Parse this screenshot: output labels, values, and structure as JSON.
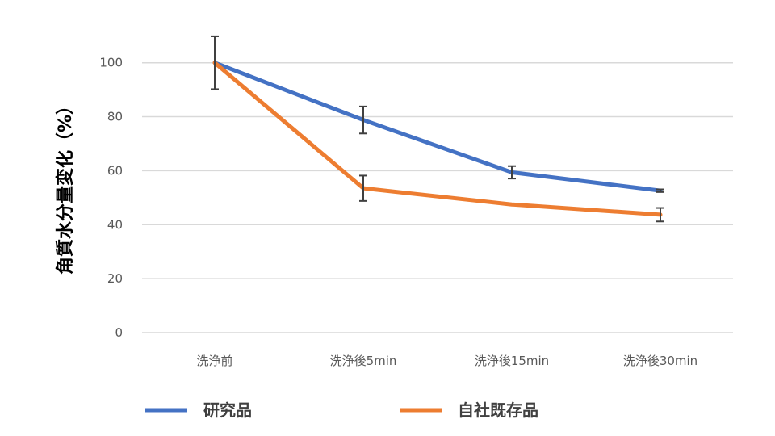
{
  "chart_data": {
    "type": "line",
    "title": "",
    "xlabel": "",
    "ylabel": "角質水分量変化（%）",
    "ylim": [
      0,
      100
    ],
    "yticks": [
      0,
      20,
      40,
      60,
      80,
      100
    ],
    "grid": true,
    "categories": [
      "洗浄前",
      "洗浄後5min",
      "洗浄後15min",
      "洗浄後30min"
    ],
    "series": [
      {
        "name": "研究品",
        "color": "#4472C4",
        "values": [
          100,
          78.8,
          59.4,
          52.6
        ],
        "errors": [
          9.8,
          5.0,
          2.3,
          0.5
        ]
      },
      {
        "name": "自社既存品",
        "color": "#ED7D31",
        "values": [
          100,
          53.5,
          47.5,
          43.7
        ],
        "errors": [
          9.8,
          4.7,
          null,
          2.5
        ]
      }
    ],
    "legend_position": "bottom"
  }
}
